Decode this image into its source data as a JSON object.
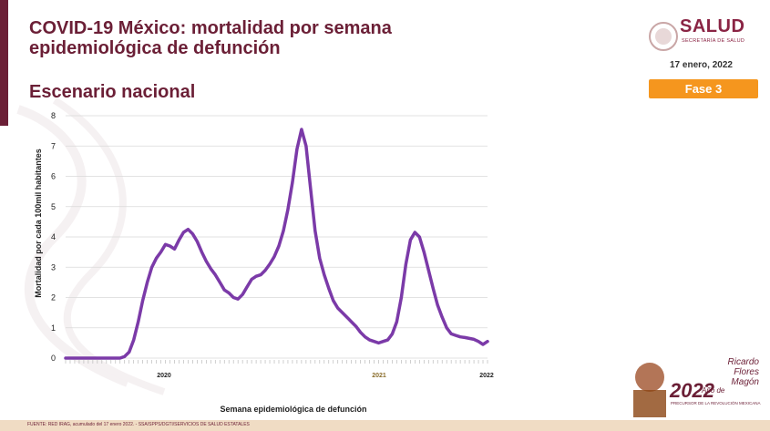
{
  "header": {
    "title_line1": "COVID-19 México: mortalidad por semana",
    "title_line2": "epidemiológica de defunción",
    "subtitle": "Escenario nacional",
    "logo_text": "SALUD",
    "logo_sub": "SECRETARÍA DE SALUD",
    "date": "17 enero, 2022",
    "phase": "Fase 3"
  },
  "footer": {
    "source": "FUENTE: RED IRAG, acumulado del 17 enero 2022. - SSA/SPPS/DGTI/SERVICIOS DE SALUD ESTATALES"
  },
  "anniversary": {
    "year": "2022",
    "ano": "Año de",
    "name": "Ricardo Flores Magón",
    "subtitle": "PRECURSOR DE LA REVOLUCIÓN MEXICANA"
  },
  "colors": {
    "brand": "#6b1f36",
    "accent": "#f5961e",
    "line": "#7b3aa8"
  },
  "chart_data": {
    "type": "line",
    "ylabel": "Mortalidad por cada 100mil habitantes",
    "xlabel": "Semana epidemiológica de defunción",
    "ylim": [
      0,
      8
    ],
    "yticks": [
      0,
      1,
      2,
      3,
      4,
      5,
      6,
      7,
      8
    ],
    "year_labels": [
      "2020",
      "2021",
      "2022"
    ],
    "grid": true,
    "series": [
      {
        "values": [
          0,
          0,
          0,
          0,
          0,
          0,
          0,
          0,
          0,
          0,
          0,
          0,
          0,
          0.05,
          0.2,
          0.6,
          1.2,
          1.9,
          2.5,
          3.0,
          3.3,
          3.5,
          3.75,
          3.7,
          3.6,
          3.9,
          4.15,
          4.25,
          4.1,
          3.85,
          3.5,
          3.2,
          2.95,
          2.75,
          2.5,
          2.25,
          2.15,
          2.0,
          1.95,
          2.1,
          2.35,
          2.6,
          2.7,
          2.75,
          2.9,
          3.1,
          3.35,
          3.7,
          4.2,
          4.9,
          5.8,
          6.9,
          7.55,
          7.0,
          5.6,
          4.2,
          3.3,
          2.75,
          2.3,
          1.9,
          1.65,
          1.5,
          1.35,
          1.2,
          1.05,
          0.85,
          0.7,
          0.6,
          0.55,
          0.5,
          0.55,
          0.6,
          0.8,
          1.2,
          2.0,
          3.1,
          3.9,
          4.15,
          4.0,
          3.5,
          2.9,
          2.3,
          1.75,
          1.35,
          1.0,
          0.8,
          0.75,
          0.7,
          0.68,
          0.65,
          0.62,
          0.55,
          0.45,
          0.55
        ]
      }
    ]
  }
}
